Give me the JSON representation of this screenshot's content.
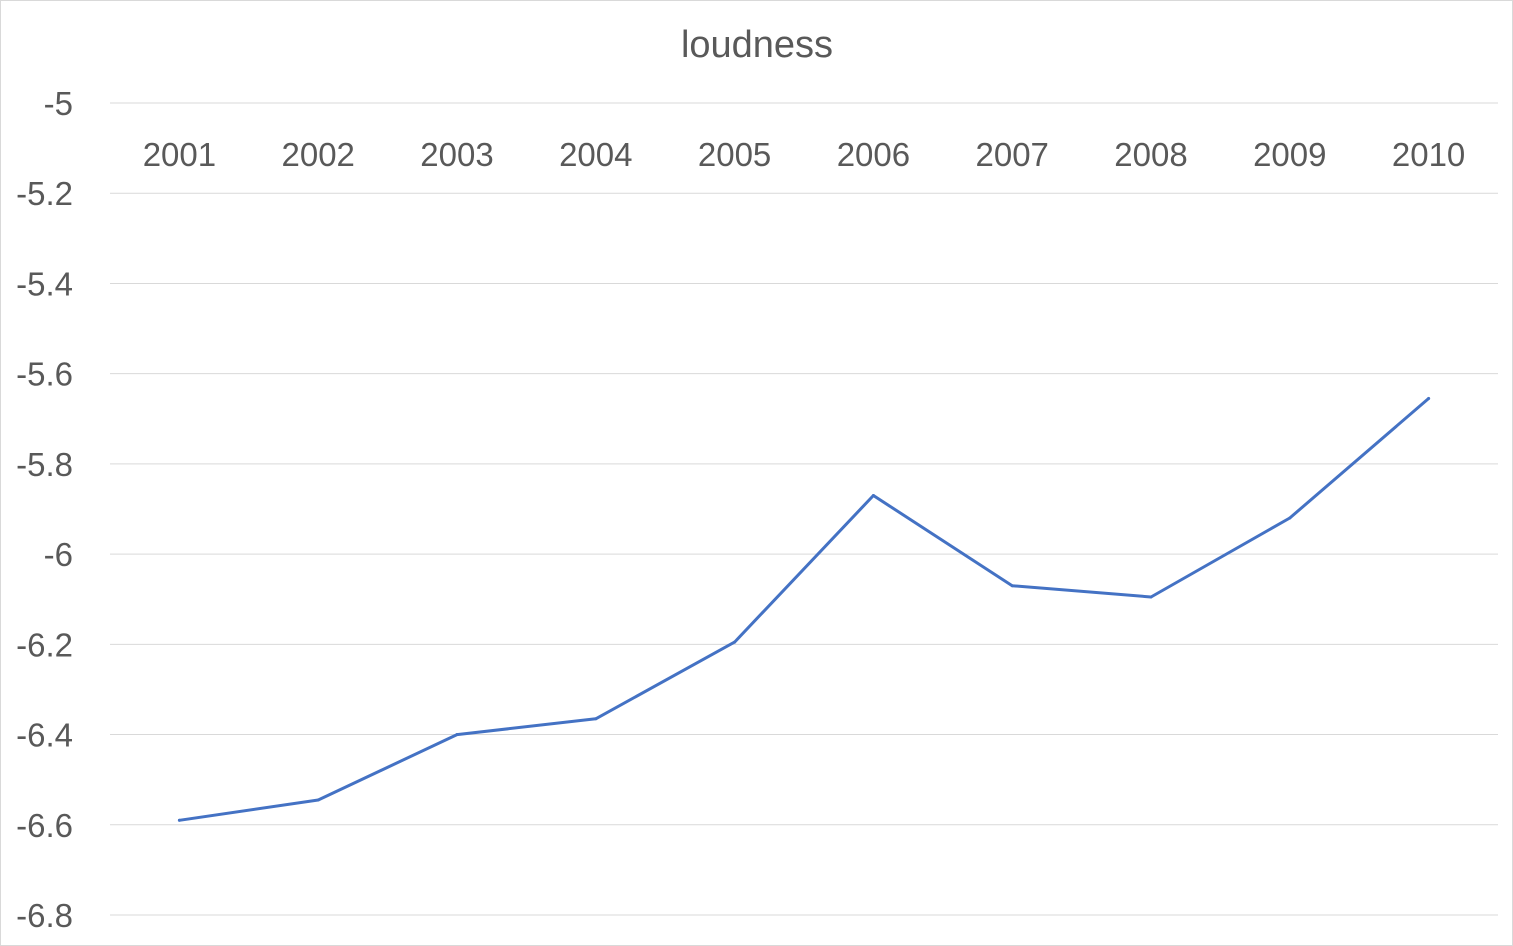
{
  "chart_data": {
    "type": "line",
    "title": "loudness",
    "xlabel": "",
    "ylabel": "",
    "categories": [
      "2001",
      "2002",
      "2003",
      "2004",
      "2005",
      "2006",
      "2007",
      "2008",
      "2009",
      "2010"
    ],
    "series": [
      {
        "values": [
          -6.59,
          -6.545,
          -6.4,
          -6.365,
          -6.195,
          -5.87,
          -6.07,
          -6.095,
          -5.92,
          -5.655
        ]
      }
    ],
    "ylim": [
      -6.8,
      -5
    ],
    "y_ticks": [
      -5,
      -5.2,
      -5.4,
      -5.6,
      -5.8,
      -6,
      -6.2,
      -6.4,
      -6.6,
      -6.8
    ],
    "y_tick_labels": [
      "-5",
      "-5.2",
      "-5.4",
      "-5.6",
      "-5.8",
      "-6",
      "-6.2",
      "-6.4",
      "-6.6",
      "-6.8"
    ],
    "x_axis_position": "top",
    "grid": true,
    "legend": "none",
    "colors": {
      "series": "#4472c4",
      "grid": "#d9d9d9",
      "text": "#595959"
    }
  }
}
